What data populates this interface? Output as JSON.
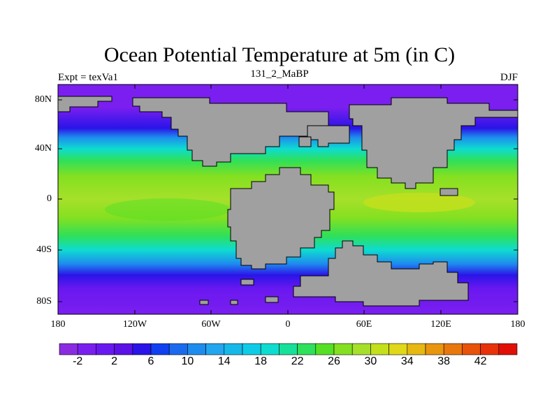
{
  "title": "Ocean Potential Temperature at 5m (in C)",
  "subtitle": {
    "left": "Expt = texVa1",
    "center": "131_2_MaBP",
    "right": "DJF"
  },
  "map": {
    "lat_ticks": [
      "80N",
      "40N",
      "0",
      "40S",
      "80S"
    ],
    "lon_ticks": [
      "180",
      "120W",
      "60W",
      "0",
      "60E",
      "120E",
      "180"
    ]
  },
  "colorbar": {
    "labels": [
      "-2",
      "2",
      "6",
      "10",
      "14",
      "18",
      "22",
      "26",
      "30",
      "34",
      "38",
      "42"
    ],
    "colors": [
      "#8a2be2",
      "#7a1ff0",
      "#6a18f0",
      "#5a12e6",
      "#2a14e8",
      "#1040f0",
      "#1a6aee",
      "#1e8cee",
      "#22a6ee",
      "#16b8ea",
      "#0ecce8",
      "#0edcd0",
      "#16e09a",
      "#2ee05a",
      "#56e025",
      "#84e020",
      "#a6e02a",
      "#c4e01c",
      "#e0d818",
      "#e8b812",
      "#e8960e",
      "#e8780c",
      "#e8520a",
      "#e8320a",
      "#e01008"
    ]
  }
}
